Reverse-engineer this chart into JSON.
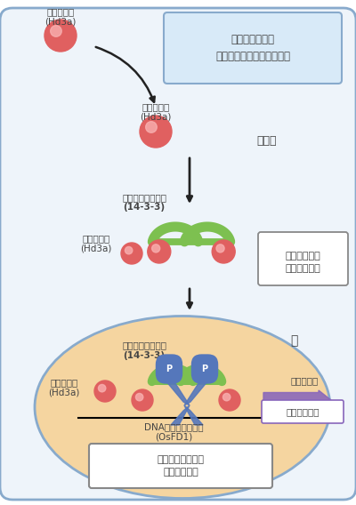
{
  "bg_color": "#ffffff",
  "cell_outer_color": "#88aacc",
  "cell_outer_fill": "#eef4fa",
  "nucleus_fill": "#f5d5a0",
  "nucleus_edge": "#88aacc",
  "receptor_color": "#7dc050",
  "florigen_color": "#e06060",
  "florigen_highlight": "#f8b0b0",
  "dna_protein_color": "#5577bb",
  "arrow_color": "#222222",
  "purple_arrow_color": "#8866bb",
  "text_color": "#444444",
  "box_fill": "#d8eaf8",
  "box_edge": "#88aacc",
  "label_florigen": "フロリゲン",
  "label_hd3a": "(Hd3a)",
  "label_cell_area": "茎の先端の細胞\n（花のできる部位の細胞）",
  "label_cytoplasm": "細胞質",
  "label_receptor": "フロリゲン受容体",
  "label_14_3_3": "(14-3-3)",
  "label_binding_box": "フロリゲンと\n受容体の結合",
  "label_nucleus": "核",
  "label_dna_protein": "DNA結合タンパク質",
  "label_osfd1": "(OsFD1)",
  "label_transcription": "転写活性化",
  "label_flower_gene": "花形成遺伝子",
  "label_complex": "フロリゲン活性化\n複合体の形成"
}
